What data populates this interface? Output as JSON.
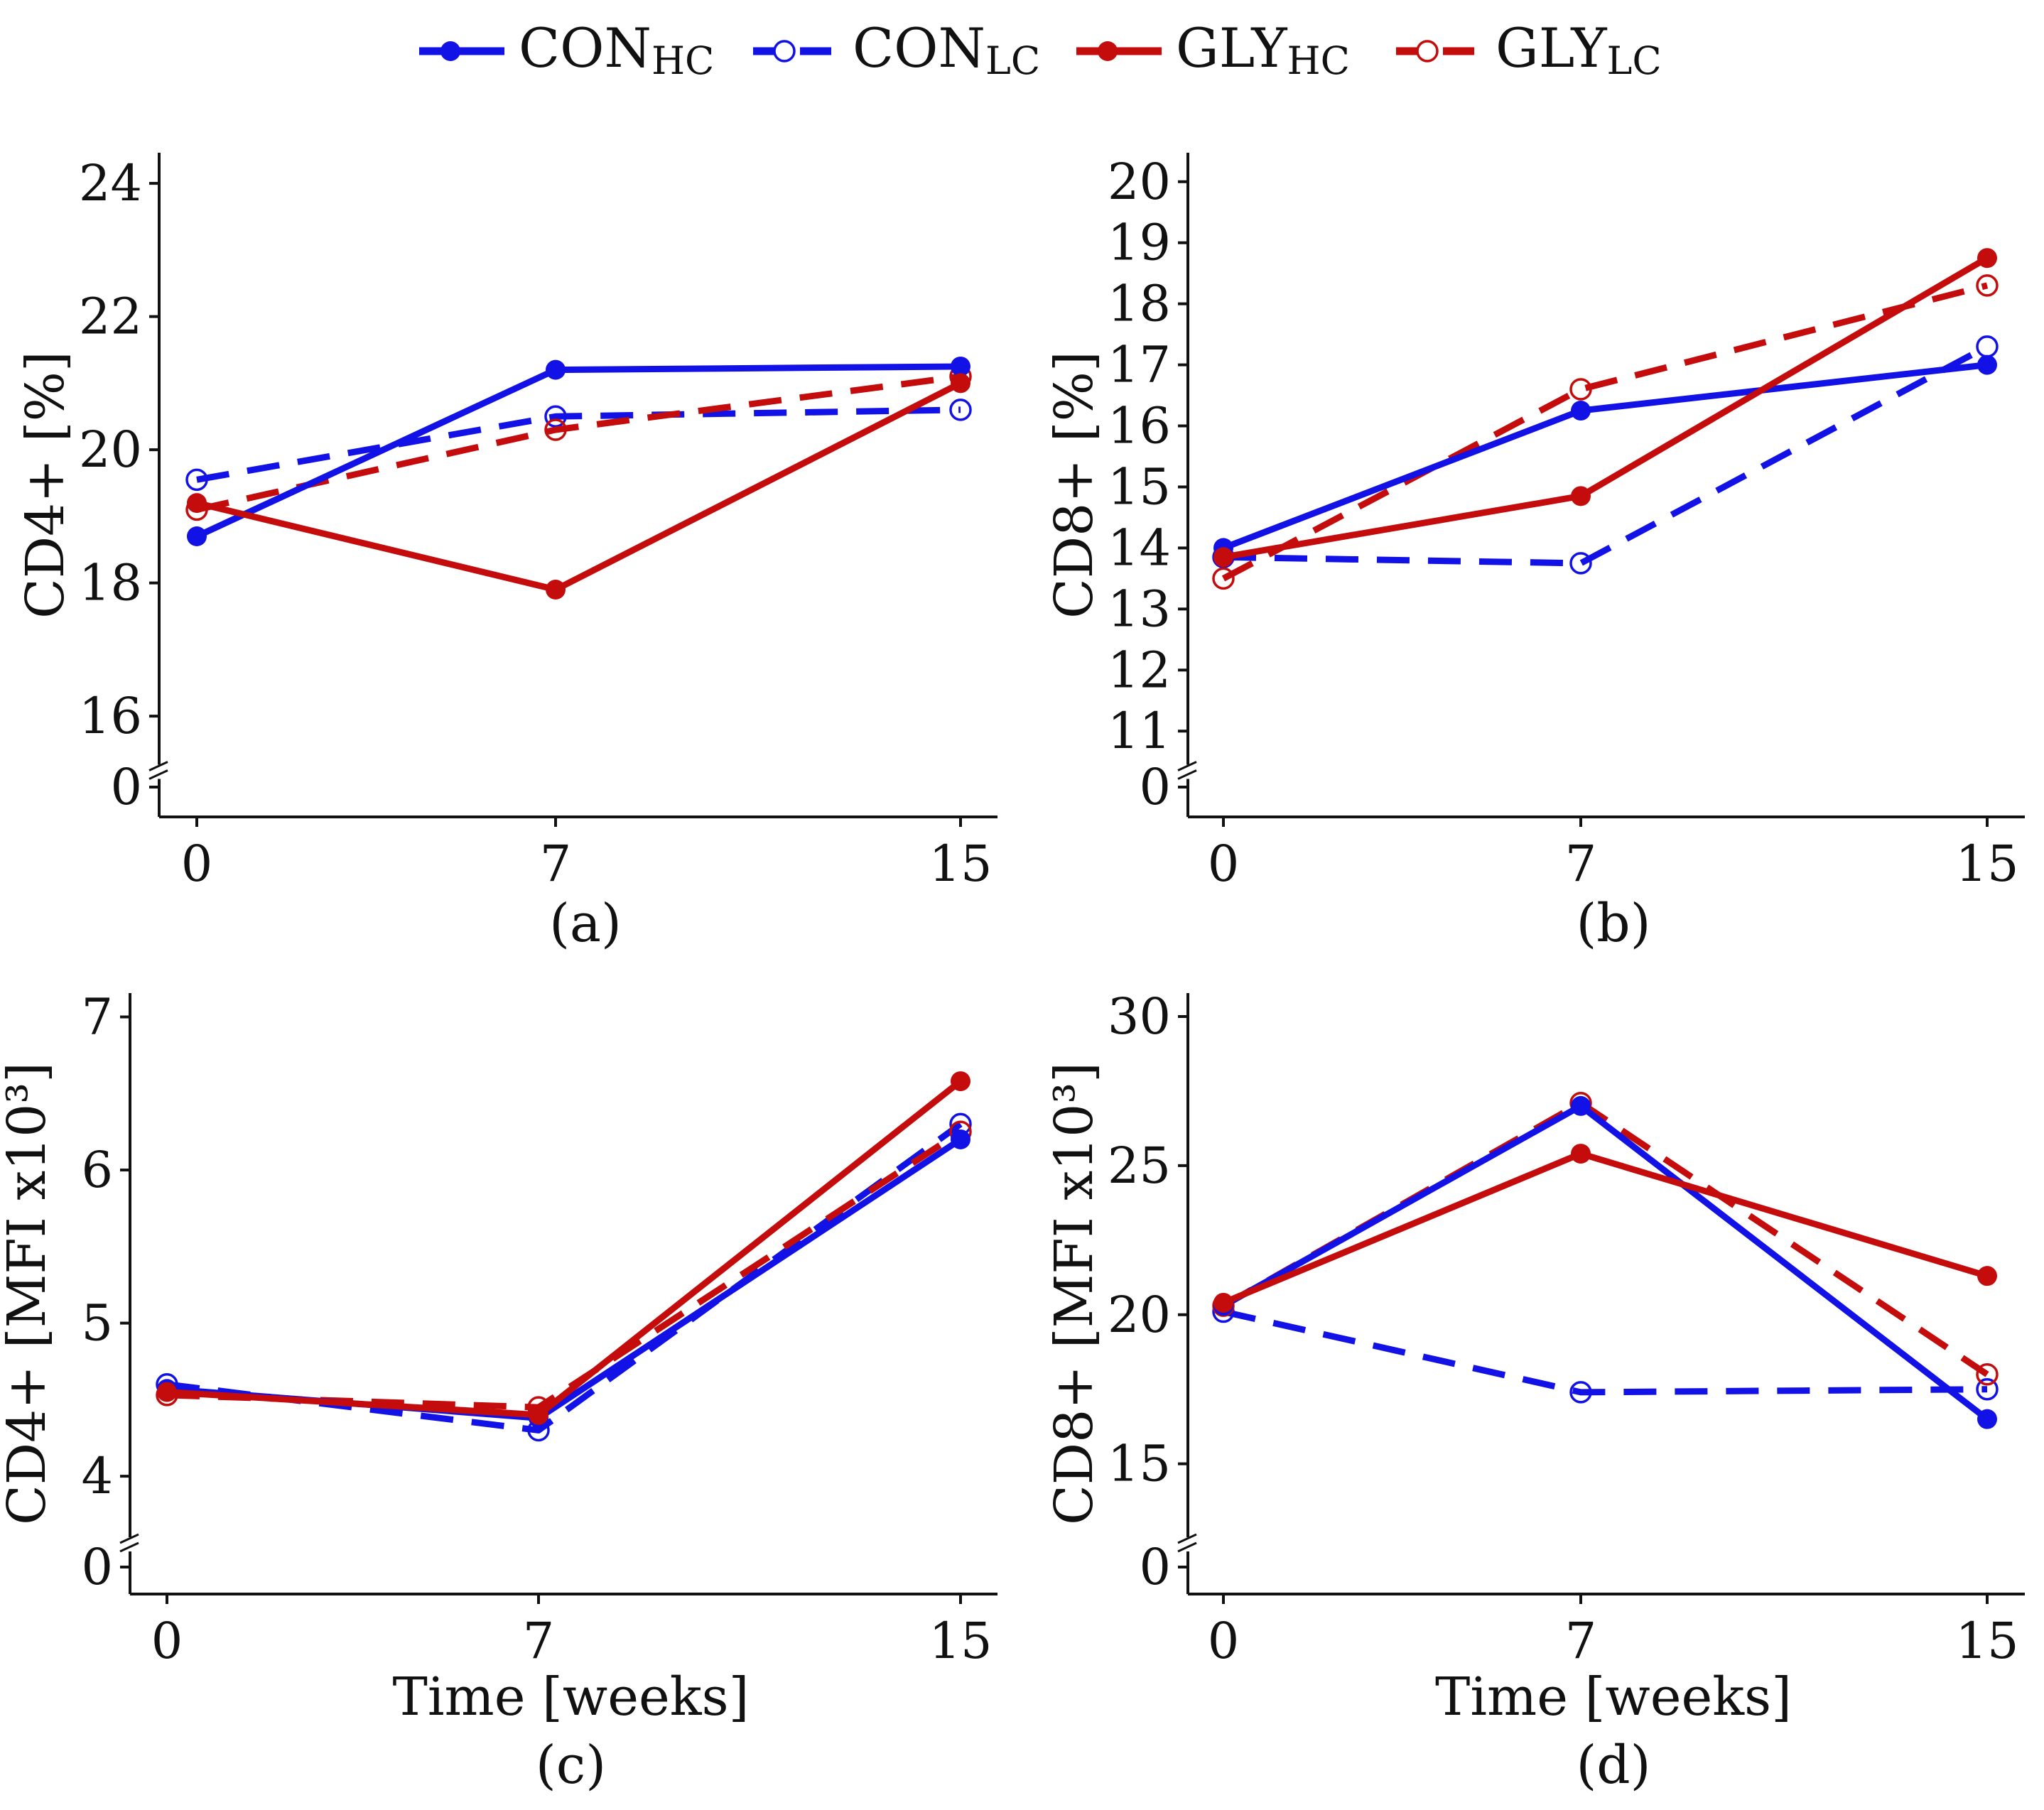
{
  "legend": [
    {
      "base": "CON",
      "sub": "HC",
      "color": "#1212e6",
      "dashed": false,
      "filled": true
    },
    {
      "base": "CON",
      "sub": "LC",
      "color": "#1212e6",
      "dashed": true,
      "filled": false
    },
    {
      "base": "GLY",
      "sub": "HC",
      "color": "#c40c0c",
      "dashed": false,
      "filled": true
    },
    {
      "base": "GLY",
      "sub": "LC",
      "color": "#c40c0c",
      "dashed": true,
      "filled": false
    }
  ],
  "chart_data": [
    {
      "type": "line",
      "panel_label": "(a)",
      "ylabel": "CD4+ [%]",
      "xlabel": "",
      "x": [
        0,
        7,
        15
      ],
      "x_ticks": [
        "0",
        "7",
        "15"
      ],
      "y_ticks": [
        16,
        18,
        20,
        22,
        24
      ],
      "ylim": [
        15.5,
        24.3
      ],
      "broken_axis_zero": "0",
      "series": [
        {
          "name": "CON_HC",
          "values": [
            18.7,
            21.2,
            21.25
          ]
        },
        {
          "name": "CON_LC",
          "values": [
            19.55,
            20.5,
            20.6
          ]
        },
        {
          "name": "GLY_HC",
          "values": [
            19.2,
            17.9,
            21.0
          ]
        },
        {
          "name": "GLY_LC",
          "values": [
            19.1,
            20.3,
            21.1
          ]
        }
      ]
    },
    {
      "type": "line",
      "panel_label": "(b)",
      "ylabel": "CD8+ [%]",
      "xlabel": "",
      "x": [
        0,
        7,
        15
      ],
      "x_ticks": [
        "0",
        "7",
        "15"
      ],
      "y_ticks": [
        11,
        12,
        13,
        14,
        15,
        16,
        17,
        18,
        19,
        20
      ],
      "ylim": [
        10.7,
        20.3
      ],
      "broken_axis_zero": "0",
      "series": [
        {
          "name": "CON_HC",
          "values": [
            14.0,
            16.25,
            17.0
          ]
        },
        {
          "name": "CON_LC",
          "values": [
            13.85,
            13.75,
            17.3
          ]
        },
        {
          "name": "GLY_HC",
          "values": [
            13.85,
            14.85,
            18.75
          ]
        },
        {
          "name": "GLY_LC",
          "values": [
            13.5,
            16.6,
            18.3
          ]
        }
      ]
    },
    {
      "type": "line",
      "panel_label": "(c)",
      "ylabel": "CD4+ [MFI x10³]",
      "xlabel": "Time [weeks]",
      "x": [
        0,
        7,
        15
      ],
      "x_ticks": [
        "0",
        "7",
        "15"
      ],
      "y_ticks": [
        4,
        5,
        6,
        7
      ],
      "ylim": [
        3.75,
        7.1
      ],
      "broken_axis_zero": "0",
      "series": [
        {
          "name": "CON_HC",
          "values": [
            4.57,
            4.38,
            6.2
          ]
        },
        {
          "name": "CON_LC",
          "values": [
            4.6,
            4.3,
            6.3
          ]
        },
        {
          "name": "GLY_HC",
          "values": [
            4.55,
            4.4,
            6.58
          ]
        },
        {
          "name": "GLY_LC",
          "values": [
            4.53,
            4.45,
            6.25
          ]
        }
      ]
    },
    {
      "type": "line",
      "panel_label": "(d)",
      "ylabel": "CD8+ [MFI x10³]",
      "xlabel": "Time [weeks]",
      "x": [
        0,
        7,
        15
      ],
      "x_ticks": [
        "0",
        "7",
        "15"
      ],
      "y_ticks": [
        15,
        20,
        25,
        30
      ],
      "ylim": [
        13.3,
        30.5
      ],
      "broken_axis_zero": "0",
      "series": [
        {
          "name": "CON_HC",
          "values": [
            20.3,
            27.0,
            16.5
          ]
        },
        {
          "name": "CON_LC",
          "values": [
            20.1,
            17.4,
            17.5
          ]
        },
        {
          "name": "GLY_HC",
          "values": [
            20.4,
            25.4,
            21.3
          ]
        },
        {
          "name": "GLY_LC",
          "values": [
            20.3,
            27.1,
            18.0
          ]
        }
      ]
    }
  ]
}
